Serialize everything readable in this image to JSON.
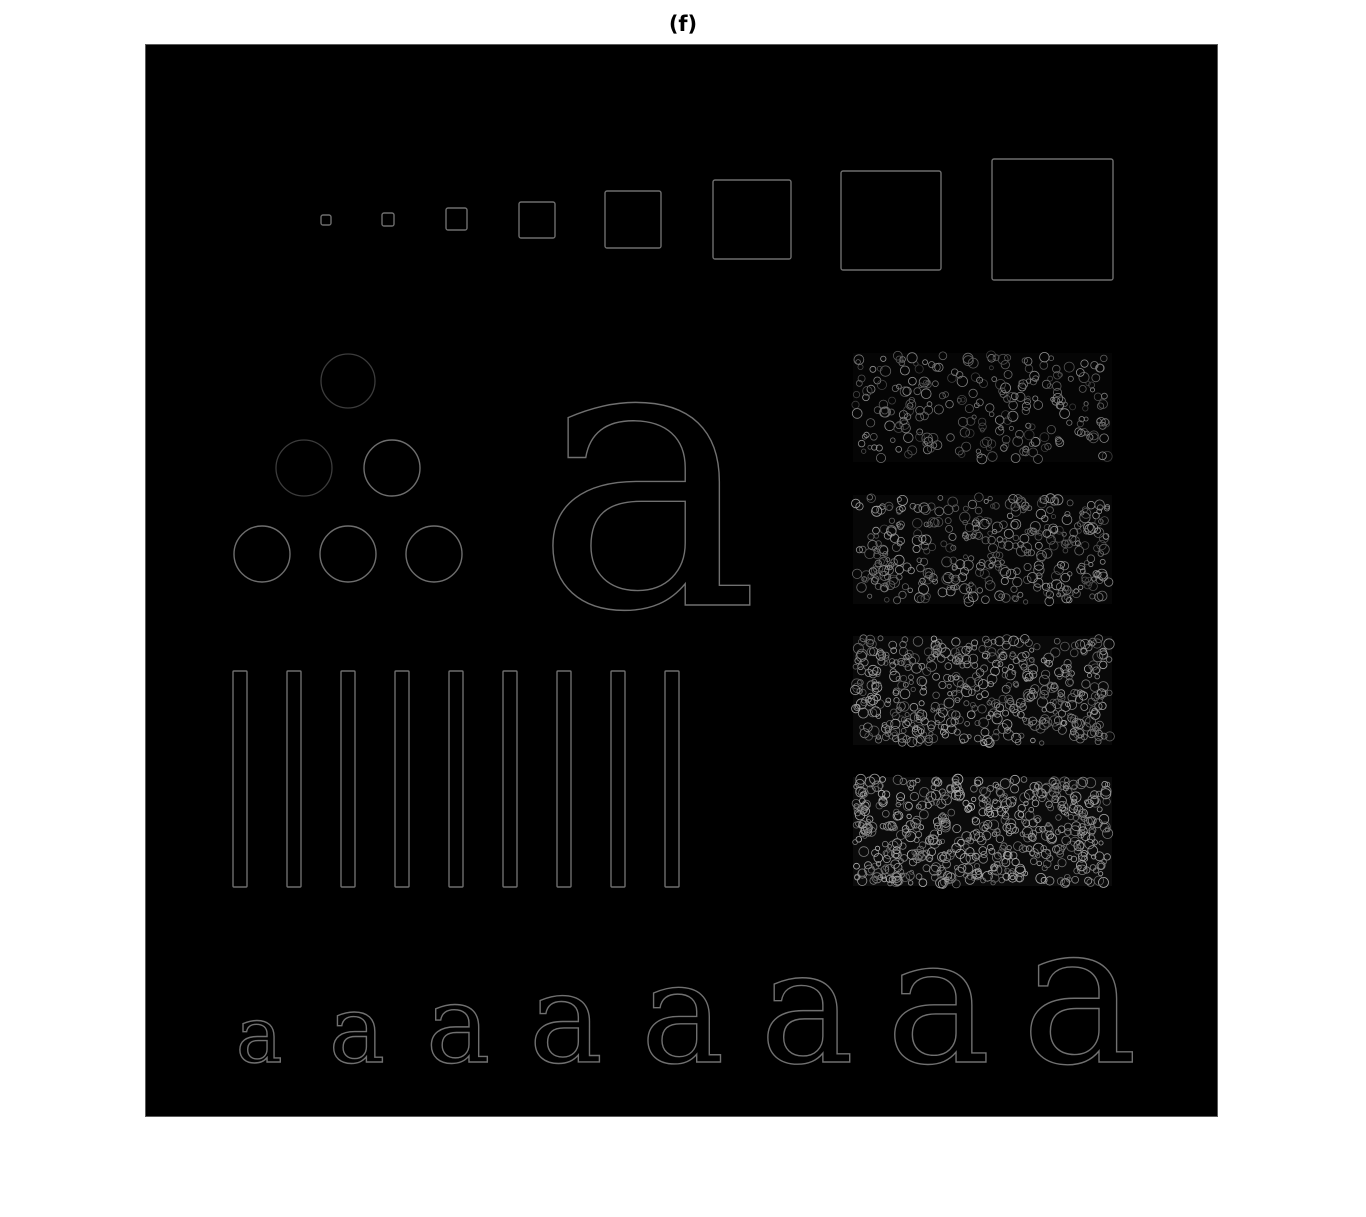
{
  "figure": {
    "title": "(f)",
    "letter": "a"
  }
}
